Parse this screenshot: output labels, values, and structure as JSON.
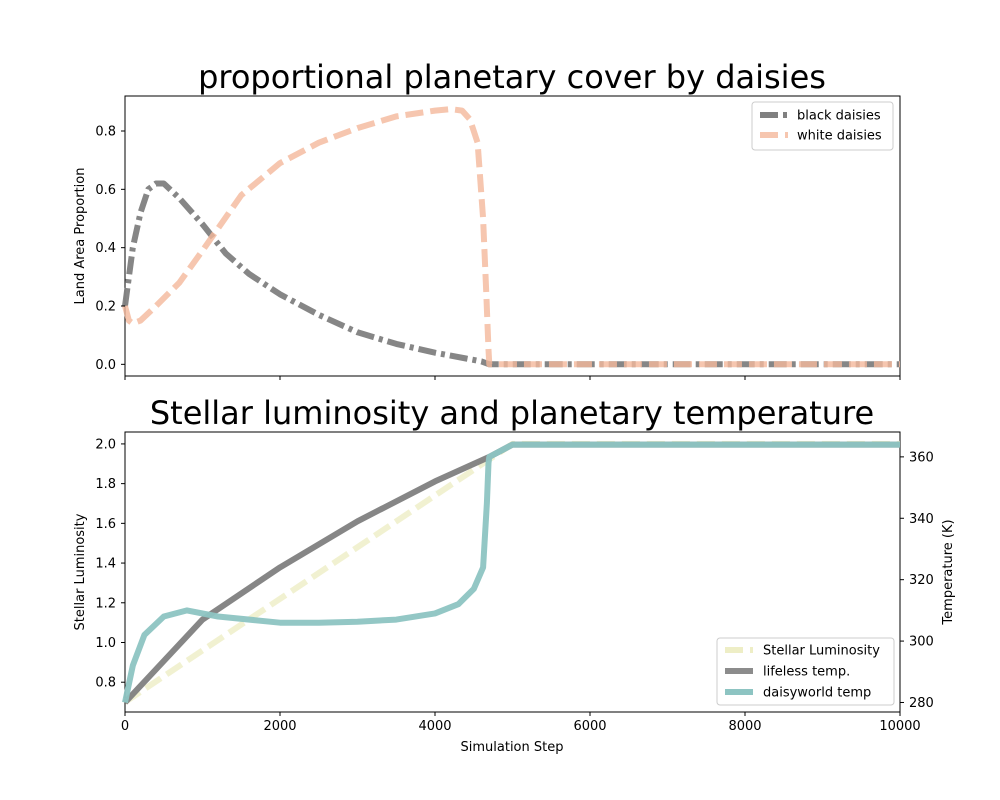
{
  "chart_data": [
    {
      "type": "line",
      "title": "proportional planetary cover by daisies",
      "xlabel": "",
      "ylabel": "Land Area Proportion",
      "xlim": [
        0,
        10000
      ],
      "ylim": [
        -0.04,
        0.92
      ],
      "x_ticks": [
        0,
        2000,
        4000,
        6000,
        8000,
        10000
      ],
      "x_tick_labels_visible": false,
      "y_ticks": [
        0.0,
        0.2,
        0.4,
        0.6,
        0.8
      ],
      "y_tick_labels": [
        "0.0",
        "0.2",
        "0.4",
        "0.6",
        "0.8"
      ],
      "grid": false,
      "legend_position": "top-right",
      "series": [
        {
          "name": "black daisies",
          "color": "#808080",
          "style": "dashdot",
          "x": [
            0,
            100,
            200,
            300,
            400,
            500,
            700,
            1000,
            1300,
            1600,
            2000,
            2500,
            3000,
            3500,
            4000,
            4400,
            4600,
            4700,
            5000,
            6000,
            7000,
            8000,
            9000,
            10000
          ],
          "y": [
            0.2,
            0.4,
            0.52,
            0.6,
            0.62,
            0.62,
            0.57,
            0.48,
            0.38,
            0.31,
            0.24,
            0.17,
            0.11,
            0.07,
            0.04,
            0.02,
            0.01,
            0.0,
            0.0,
            0.0,
            0.0,
            0.0,
            0.0,
            0.0
          ]
        },
        {
          "name": "white daisies",
          "color": "#f4b89b",
          "style": "dashed",
          "x": [
            0,
            50,
            100,
            200,
            400,
            700,
            1000,
            1500,
            2000,
            2500,
            3000,
            3500,
            4000,
            4200,
            4350,
            4450,
            4550,
            4620,
            4660,
            4690,
            4700,
            5000,
            6000,
            7000,
            8000,
            9000,
            10000
          ],
          "y": [
            0.2,
            0.15,
            0.14,
            0.15,
            0.2,
            0.28,
            0.39,
            0.58,
            0.69,
            0.76,
            0.81,
            0.85,
            0.87,
            0.875,
            0.87,
            0.84,
            0.76,
            0.5,
            0.25,
            0.05,
            0.0,
            0.0,
            0.0,
            0.0,
            0.0,
            0.0,
            0.0
          ]
        }
      ]
    },
    {
      "type": "line",
      "title": "Stellar luminosity and planetary temperature",
      "xlabel": "Simulation Step",
      "ylabel": "Stellar Luminosity",
      "y2label": "Temperature (K)",
      "xlim": [
        0,
        10000
      ],
      "ylim": [
        0.65,
        2.06
      ],
      "y2lim": [
        276.9,
        368.1
      ],
      "x_ticks": [
        0,
        2000,
        4000,
        6000,
        8000,
        10000
      ],
      "x_tick_labels": [
        "0",
        "2000",
        "4000",
        "6000",
        "8000",
        "10000"
      ],
      "y_ticks": [
        0.8,
        1.0,
        1.2,
        1.4,
        1.6,
        1.8,
        2.0
      ],
      "y_tick_labels": [
        "0.8",
        "1.0",
        "1.2",
        "1.4",
        "1.6",
        "1.8",
        "2.0"
      ],
      "y2_ticks": [
        280,
        300,
        320,
        340,
        360
      ],
      "y2_tick_labels": [
        "280",
        "300",
        "320",
        "340",
        "360"
      ],
      "grid": false,
      "legend_position": "bottom-right",
      "series": [
        {
          "name": "Stellar Luminosity",
          "axis": "left",
          "color": "#eeeec6",
          "style": "dashed",
          "x": [
            0,
            5000,
            10000
          ],
          "y": [
            0.7,
            2.0,
            2.0
          ]
        },
        {
          "name": "lifeless temp.",
          "axis": "right",
          "color": "#808080",
          "style": "solid",
          "x": [
            0,
            1000,
            2000,
            3000,
            4000,
            4700,
            5000,
            10000
          ],
          "y": [
            280,
            307,
            324,
            339,
            352,
            360,
            364,
            364
          ]
        },
        {
          "name": "daisyworld temp",
          "axis": "right",
          "color": "#8dc4c2",
          "style": "solid",
          "x": [
            0,
            100,
            250,
            500,
            800,
            1200,
            2000,
            2500,
            3000,
            3500,
            4000,
            4300,
            4500,
            4620,
            4670,
            4690,
            4700,
            5000,
            10000
          ],
          "y": [
            280,
            292,
            302,
            308,
            310,
            308,
            306,
            306,
            306.3,
            307,
            309,
            312,
            317,
            324,
            345,
            358,
            360,
            364,
            364
          ]
        }
      ]
    }
  ]
}
